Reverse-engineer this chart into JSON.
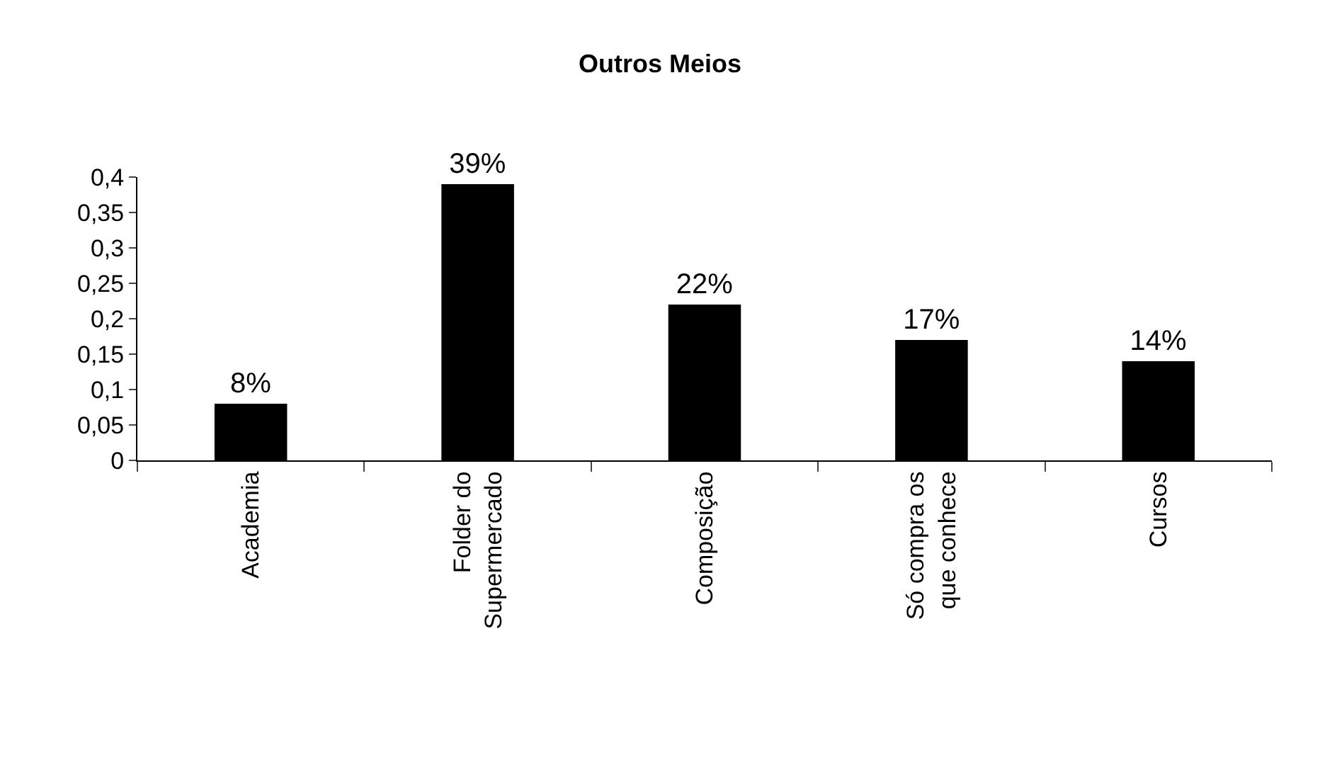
{
  "chart_data": {
    "type": "bar",
    "title": "Outros Meios",
    "categories": [
      "Academia",
      "Folder do\nSupermercado",
      "Composição",
      "Só compra os\nque conhece",
      "Cursos"
    ],
    "values": [
      0.08,
      0.39,
      0.22,
      0.17,
      0.14
    ],
    "value_labels": [
      "8%",
      "39%",
      "22%",
      "17%",
      "14%"
    ],
    "color": "#000000",
    "ylim": [
      0,
      0.4
    ],
    "yticks": [
      0,
      {
        "value": 0.05,
        "label": "0,05"
      },
      {
        "value": 0.1,
        "label": "0,1"
      },
      {
        "value": 0.15,
        "label": "0,15"
      },
      {
        "value": 0.2,
        "label": "0,2"
      },
      {
        "value": 0.25,
        "label": "0,25"
      },
      {
        "value": 0.3,
        "label": "0,3"
      },
      {
        "value": 0.35,
        "label": "0,35"
      },
      {
        "value": 0.4,
        "label": "0,4"
      }
    ],
    "legend": false
  }
}
